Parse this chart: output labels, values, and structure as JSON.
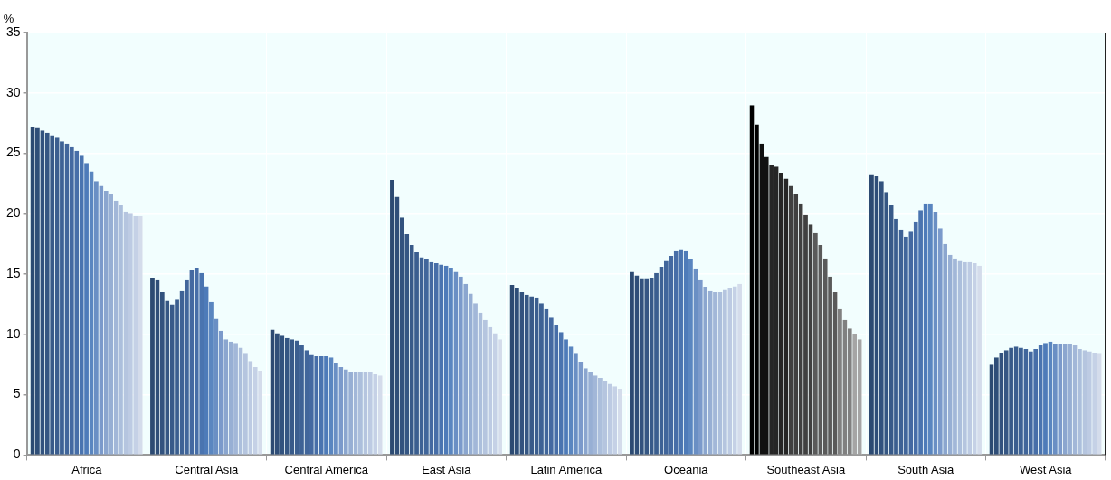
{
  "chart_data": {
    "type": "bar",
    "ylabel": "%",
    "categories": [
      "Africa",
      "Central Asia",
      "Central America",
      "East Asia",
      "Latin America",
      "Oceania",
      "Southeast Asia",
      "South Asia",
      "West Asia"
    ],
    "ylim": [
      0,
      35
    ],
    "yticks": [
      0,
      5,
      10,
      15,
      20,
      25,
      30,
      35
    ],
    "grid": true,
    "legend": false,
    "series": [
      {
        "colors": [
          "#2c4a72",
          "#2c4a72",
          "#2c4a72",
          "#2c4a72",
          "#2c4a72",
          "#2c4a72",
          "#000000",
          "#2c4a72",
          "#2c4a72"
        ],
        "values": [
          27.2,
          14.7,
          10.4,
          22.8,
          14.1,
          15.2,
          29.0,
          23.2,
          7.5
        ]
      },
      {
        "colors": [
          "#2f4e78",
          "#2f4e78",
          "#2f4e78",
          "#2f4e78",
          "#2f4e78",
          "#2f4e78",
          "#000000",
          "#2f4e78",
          "#2f4e78"
        ],
        "values": [
          27.1,
          14.5,
          10.1,
          21.4,
          13.8,
          14.9,
          27.4,
          23.1,
          8.1
        ]
      },
      {
        "colors": [
          "#32527e",
          "#32527e",
          "#32527e",
          "#32527e",
          "#32527e",
          "#32527e",
          "#111111",
          "#32527e",
          "#32527e"
        ],
        "values": [
          26.9,
          13.5,
          9.9,
          19.7,
          13.5,
          14.6,
          25.8,
          22.7,
          8.5
        ]
      },
      {
        "colors": [
          "#355683",
          "#355683",
          "#355683",
          "#355683",
          "#355683",
          "#355683",
          "#111111",
          "#355683",
          "#355683"
        ],
        "values": [
          26.7,
          12.8,
          9.7,
          18.3,
          13.3,
          14.6,
          24.7,
          21.8,
          8.7
        ]
      },
      {
        "colors": [
          "#385a89",
          "#385a89",
          "#385a89",
          "#385a89",
          "#385a89",
          "#385a89",
          "#262626",
          "#385a89",
          "#385a89"
        ],
        "values": [
          26.5,
          12.5,
          9.6,
          17.4,
          13.1,
          14.7,
          24.0,
          20.7,
          8.9
        ]
      },
      {
        "colors": [
          "#3b5e8f",
          "#3b5e8f",
          "#3b5e8f",
          "#3b5e8f",
          "#3b5e8f",
          "#3b5e8f",
          "#262626",
          "#3b5e8f",
          "#3b5e8f"
        ],
        "values": [
          26.3,
          12.9,
          9.5,
          16.8,
          13.0,
          15.1,
          23.9,
          19.6,
          9.0
        ]
      },
      {
        "colors": [
          "#3e6295",
          "#3e6295",
          "#3e6295",
          "#3e6295",
          "#3e6295",
          "#3e6295",
          "#262626",
          "#3e6295",
          "#3e6295"
        ],
        "values": [
          26.0,
          13.6,
          9.1,
          16.4,
          12.6,
          15.6,
          23.4,
          18.7,
          8.9
        ]
      },
      {
        "colors": [
          "#41669b",
          "#41669b",
          "#41669b",
          "#41669b",
          "#41669b",
          "#41669b",
          "#262626",
          "#41669b",
          "#41669b"
        ],
        "values": [
          25.8,
          14.5,
          8.7,
          16.2,
          12.1,
          16.1,
          22.9,
          18.1,
          8.8
        ]
      },
      {
        "colors": [
          "#4469a1",
          "#4469a1",
          "#4469a1",
          "#4469a1",
          "#4469a1",
          "#4469a1",
          "#404040",
          "#4469a1",
          "#4469a1"
        ],
        "values": [
          25.5,
          15.3,
          8.3,
          16.0,
          11.4,
          16.5,
          22.3,
          18.5,
          8.6
        ]
      },
      {
        "colors": [
          "#476ea8",
          "#476ea8",
          "#476ea8",
          "#476ea8",
          "#476ea8",
          "#476ea8",
          "#404040",
          "#476ea8",
          "#476ea8"
        ],
        "values": [
          25.2,
          15.5,
          8.2,
          15.9,
          10.8,
          16.9,
          21.6,
          19.3,
          8.8
        ]
      },
      {
        "colors": [
          "#4a74b0",
          "#4a74b0",
          "#4a74b0",
          "#4a74b0",
          "#4a74b0",
          "#4a74b0",
          "#404040",
          "#4a74b0",
          "#4a74b0"
        ],
        "values": [
          24.8,
          15.1,
          8.2,
          15.8,
          10.2,
          17.0,
          20.8,
          20.3,
          9.1
        ]
      },
      {
        "colors": [
          "#4e7bb9",
          "#4e7bb9",
          "#4e7bb9",
          "#4e7bb9",
          "#4e7bb9",
          "#4e7bb9",
          "#404040",
          "#4e7bb9",
          "#4e7bb9"
        ],
        "values": [
          24.2,
          14.0,
          8.2,
          15.7,
          9.6,
          16.9,
          19.9,
          20.8,
          9.3
        ]
      },
      {
        "colors": [
          "#5a86c0",
          "#5a86c0",
          "#5a86c0",
          "#5a86c0",
          "#5a86c0",
          "#5a86c0",
          "#404040",
          "#5a86c0",
          "#5a86c0"
        ],
        "values": [
          23.5,
          12.7,
          8.1,
          15.5,
          9.0,
          16.2,
          19.1,
          20.8,
          9.4
        ]
      },
      {
        "colors": [
          "#6a8fc4",
          "#6a8fc4",
          "#6a8fc4",
          "#6a8fc4",
          "#6a8fc4",
          "#6a8fc4",
          "#5a5a5a",
          "#6a8fc4",
          "#6a8fc4"
        ],
        "values": [
          22.7,
          11.3,
          7.6,
          15.2,
          8.4,
          15.4,
          18.4,
          20.1,
          9.2
        ]
      },
      {
        "colors": [
          "#7b9acb",
          "#7b9acb",
          "#7b9acb",
          "#7b9acb",
          "#7b9acb",
          "#7b9acb",
          "#5a5a5a",
          "#7b9acb",
          "#7b9acb"
        ],
        "values": [
          22.3,
          10.3,
          7.3,
          14.8,
          7.7,
          14.5,
          17.4,
          18.8,
          9.2
        ]
      },
      {
        "colors": [
          "#8ba6cf",
          "#8ba6cf",
          "#8ba6cf",
          "#8ba6cf",
          "#8ba6cf",
          "#8ba6cf",
          "#5a5a5a",
          "#8ba6cf",
          "#8ba6cf"
        ],
        "values": [
          21.9,
          9.6,
          7.1,
          14.2,
          7.2,
          13.9,
          16.3,
          17.5,
          9.2
        ]
      },
      {
        "colors": [
          "#97afd4",
          "#97afd4",
          "#97afd4",
          "#97afd4",
          "#97afd4",
          "#97afd4",
          "#5a5a5a",
          "#97afd4",
          "#97afd4"
        ],
        "values": [
          21.6,
          9.4,
          6.9,
          13.4,
          6.9,
          13.6,
          14.8,
          16.6,
          9.2
        ]
      },
      {
        "colors": [
          "#a2b7d8",
          "#a2b7d8",
          "#a2b7d8",
          "#a2b7d8",
          "#a2b7d8",
          "#a2b7d8",
          "#5a5a5a",
          "#a2b7d8",
          "#a2b7d8"
        ],
        "values": [
          21.1,
          9.3,
          6.9,
          12.6,
          6.6,
          13.5,
          13.5,
          16.3,
          9.1
        ]
      },
      {
        "colors": [
          "#acbfdc",
          "#acbfdc",
          "#acbfdc",
          "#acbfdc",
          "#acbfdc",
          "#acbfdc",
          "#808080",
          "#acbfdc",
          "#acbfdc"
        ],
        "values": [
          20.7,
          8.9,
          6.9,
          11.8,
          6.4,
          13.5,
          12.1,
          16.1,
          8.8
        ]
      },
      {
        "colors": [
          "#b5c5df",
          "#b5c5df",
          "#b5c5df",
          "#b5c5df",
          "#b5c5df",
          "#b5c5df",
          "#808080",
          "#b5c5df",
          "#b5c5df"
        ],
        "values": [
          20.2,
          8.4,
          6.9,
          11.2,
          6.1,
          13.7,
          11.2,
          16.0,
          8.7
        ]
      },
      {
        "colors": [
          "#bdcbe3",
          "#bdcbe3",
          "#bdcbe3",
          "#bdcbe3",
          "#bdcbe3",
          "#bdcbe3",
          "#808080",
          "#bdcbe3",
          "#bdcbe3"
        ],
        "values": [
          20.0,
          7.8,
          6.9,
          10.6,
          5.9,
          13.8,
          10.5,
          16.0,
          8.6
        ]
      },
      {
        "colors": [
          "#c5d1e6",
          "#c5d1e6",
          "#c5d1e6",
          "#c5d1e6",
          "#c5d1e6",
          "#c5d1e6",
          "#a5a5a5",
          "#c5d1e6",
          "#c5d1e6"
        ],
        "values": [
          19.8,
          7.3,
          6.7,
          10.1,
          5.7,
          14.0,
          10.0,
          15.9,
          8.5
        ]
      },
      {
        "colors": [
          "#d4dceb",
          "#d4dceb",
          "#d4dceb",
          "#d4dceb",
          "#d4dceb",
          "#d4dceb",
          "#a5a5a5",
          "#d4dceb",
          "#d4dceb"
        ],
        "values": [
          19.8,
          7.0,
          6.6,
          9.6,
          5.5,
          14.2,
          9.6,
          15.7,
          8.4
        ]
      }
    ]
  }
}
